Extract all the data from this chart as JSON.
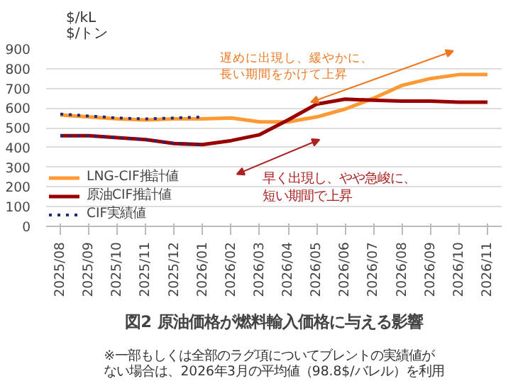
{
  "chart_data": {
    "type": "line",
    "title": "図2 原油価格が燃料輸入価格に与える影響",
    "ylabel": "$/kL\n$/トン",
    "categories": [
      "2025/08",
      "2025/09",
      "2025/10",
      "2025/11",
      "2025/12",
      "2026/01",
      "2026/02",
      "2026/03",
      "2026/04",
      "2026/05",
      "2026/06",
      "2026/07",
      "2026/08",
      "2026/09",
      "2026/10",
      "2026/11"
    ],
    "series": [
      {
        "name": "LNG-CIF推計値",
        "color": "#ff9933",
        "values": [
          565,
          555,
          545,
          540,
          545,
          545,
          550,
          530,
          530,
          555,
          595,
          650,
          715,
          750,
          770,
          770
        ]
      },
      {
        "name": "原油CIF推計値",
        "color": "#990000",
        "values": [
          460,
          460,
          450,
          440,
          420,
          415,
          435,
          465,
          540,
          620,
          645,
          640,
          635,
          635,
          630,
          630
        ]
      },
      {
        "name": "CIF実績値",
        "color": "#1f2a7a",
        "line_style": "dotted",
        "values": [
          570,
          560,
          550,
          545,
          550,
          555,
          null,
          null,
          null,
          null,
          null,
          null,
          null,
          null,
          null,
          null
        ]
      },
      {
        "color": "#1f2a7a",
        "line_style": "dotted",
        "values": [
          460,
          460,
          450,
          440,
          420,
          415,
          null,
          null,
          null,
          null,
          null,
          null,
          null,
          null,
          null,
          null
        ]
      }
    ],
    "ylim": [
      0,
      900
    ],
    "yticks": [
      0,
      100,
      200,
      300,
      400,
      500,
      600,
      700,
      800,
      900
    ],
    "grid": "y",
    "legend": "bottom left",
    "annotations": [
      "遅めに出現し、緩やかに、長い期間をかけて上昇",
      "早く出現し、やや急峻に、短い期間で上昇",
      "※一部もしくは全部のラグ項についてブレントの実績値がない場合は、2026年3月の平均値（98.8$/バレル）を利用"
    ]
  }
}
